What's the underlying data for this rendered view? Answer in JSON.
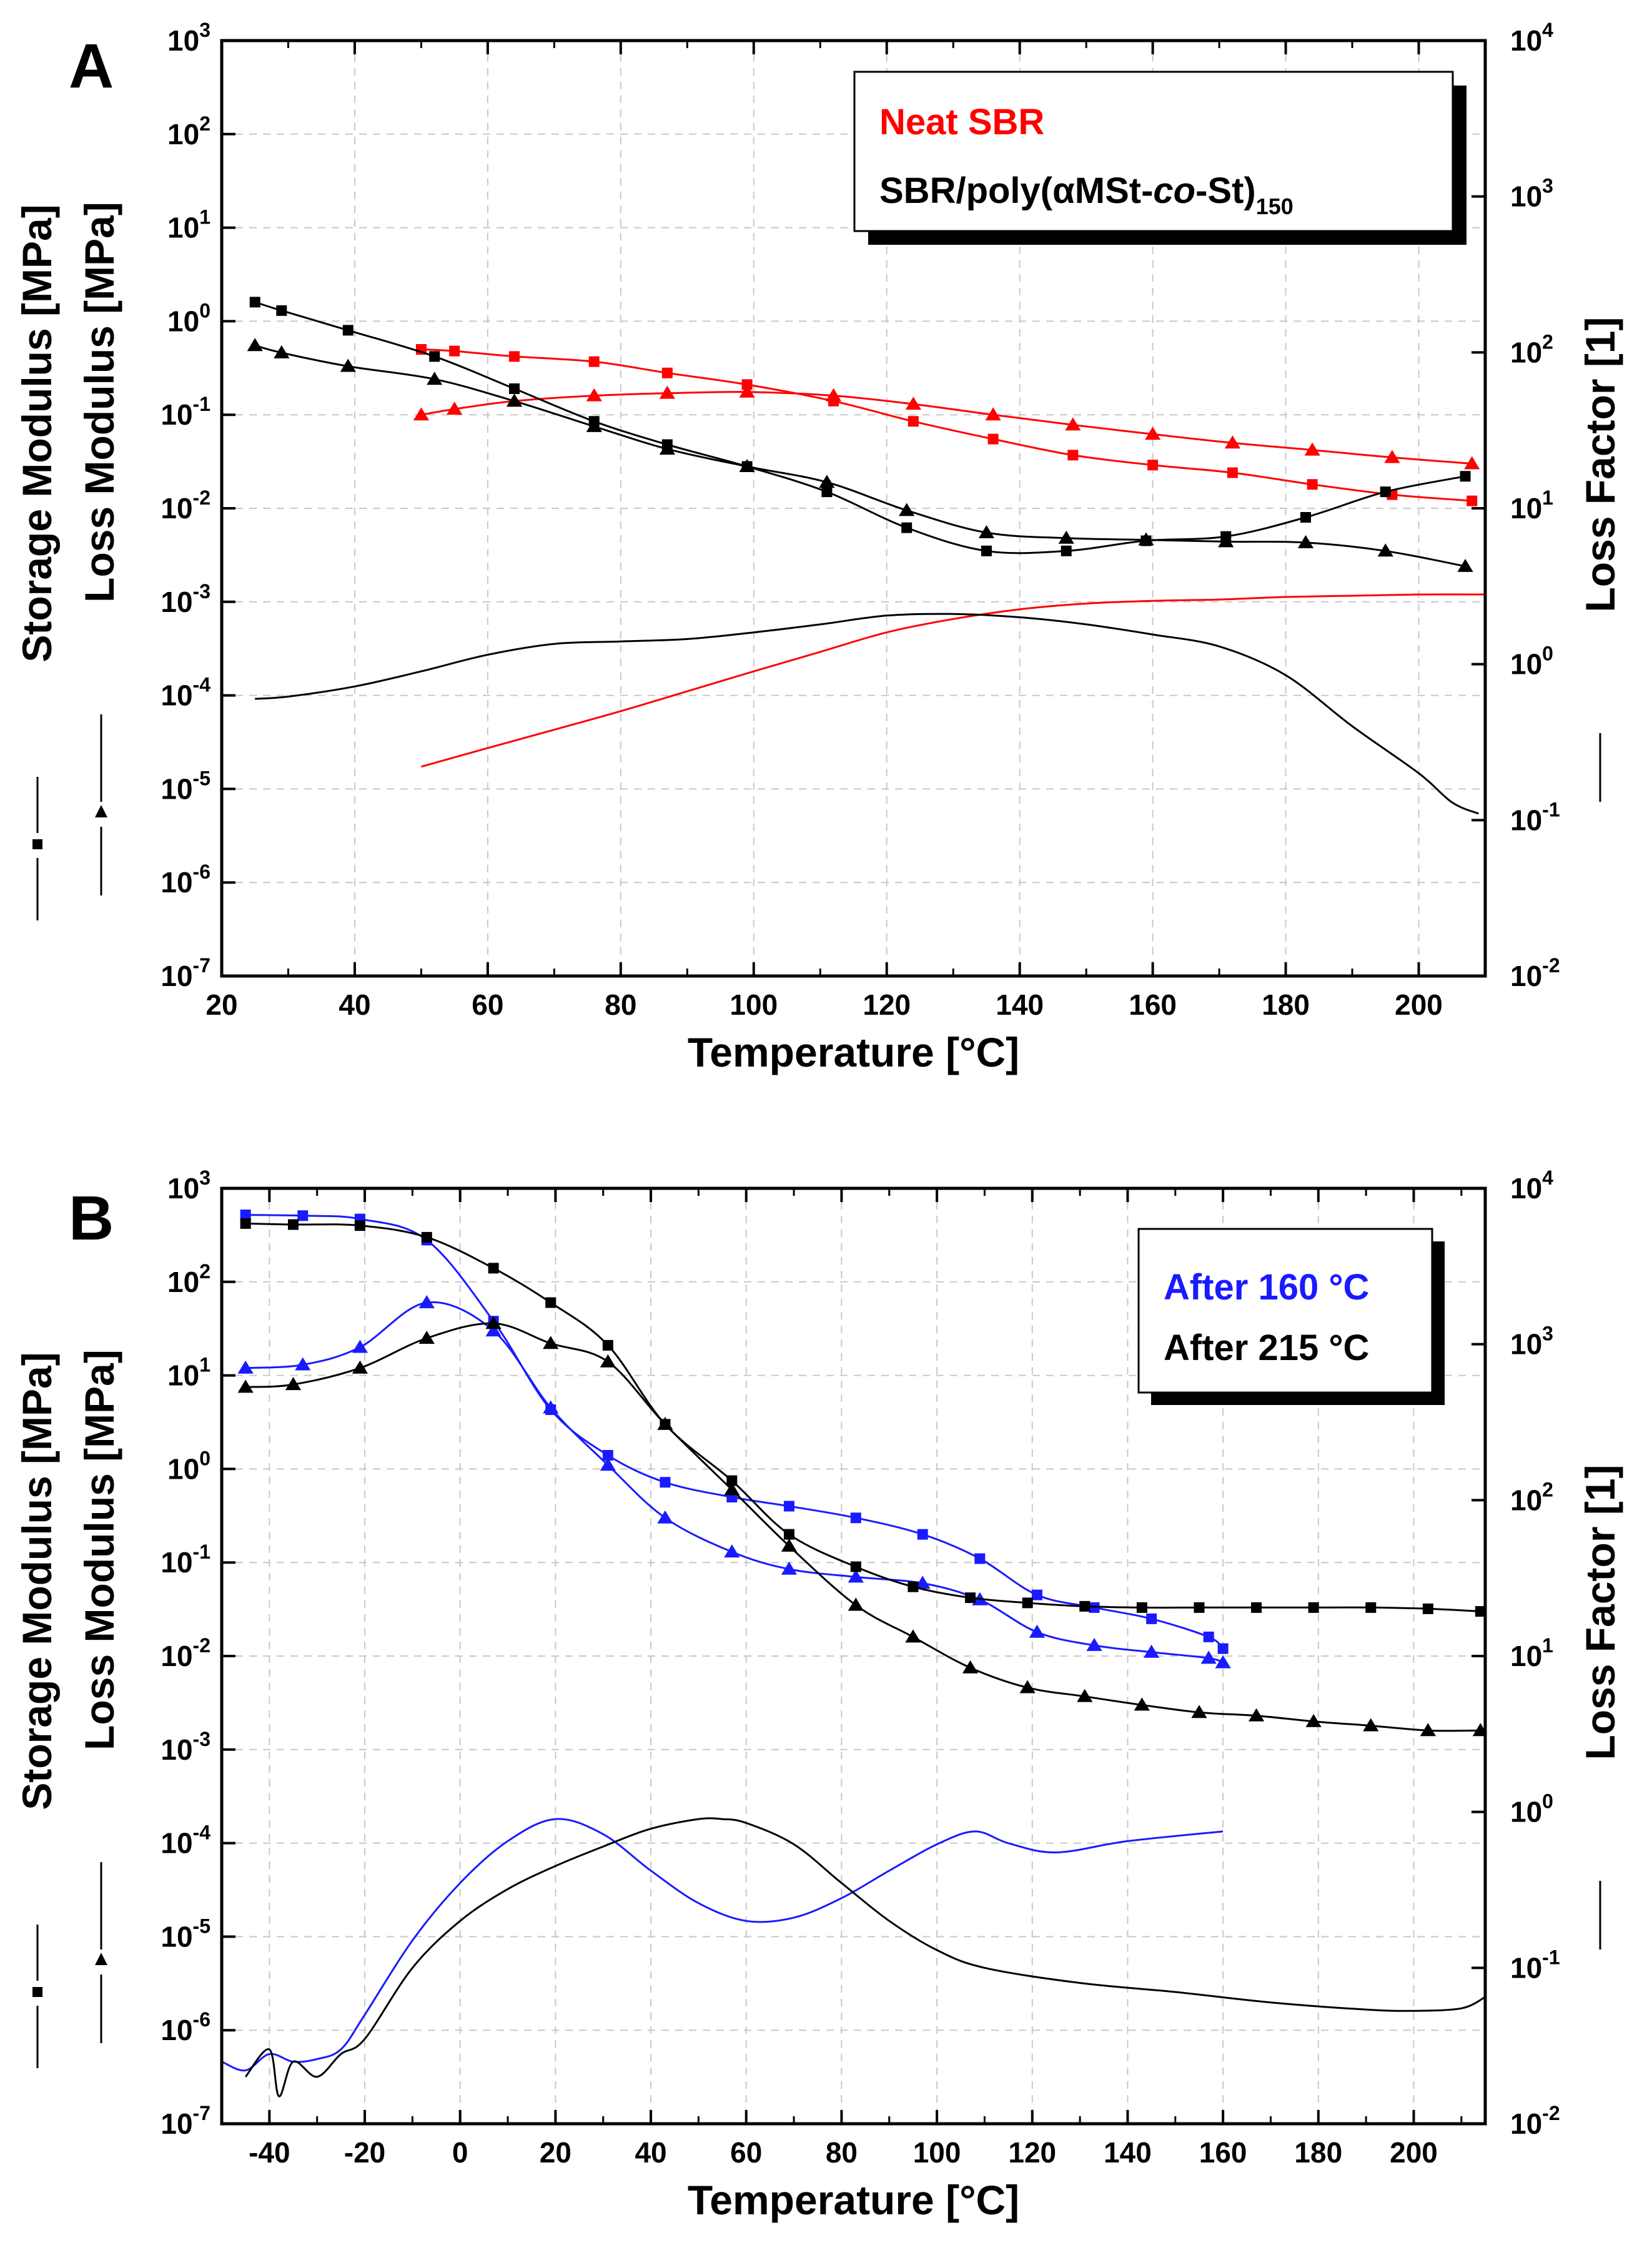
{
  "chart_data": [
    {
      "panel": "A",
      "type": "line",
      "xlabel": "Temperature [°C]",
      "ylabel_left_1": "Storage Modulus [MPa]",
      "ylabel_left_2": "Loss Modulus [MPa]",
      "ylabel_right": "Loss Factor [1]",
      "xlim": [
        20,
        210
      ],
      "xticks": [
        20,
        40,
        60,
        80,
        100,
        120,
        140,
        160,
        180,
        200
      ],
      "ylim_exp": [
        -7,
        3
      ],
      "ylim_right_exp": [
        -2,
        4
      ],
      "left_tick_labels": [
        "10-7",
        "10-6",
        "10-5",
        "10-4",
        "10-3",
        "10-2",
        "10-1",
        "100",
        "101",
        "102",
        "103"
      ],
      "right_tick_labels": [
        "10-2",
        "10-1",
        "100",
        "101",
        "102",
        "103",
        "104"
      ],
      "legend": [
        {
          "text": "Neat SBR",
          "color": "#ff0000"
        },
        {
          "text": "SBR/poly(αMSt-",
          "italic": "co",
          "text2": "-St)",
          "sub": "150",
          "color": "#000000"
        }
      ],
      "series": [
        {
          "name": "Neat SBR storage",
          "color": "#ff0000",
          "marker": "square",
          "axis": "left",
          "x": [
            50,
            55,
            64,
            76,
            87,
            99,
            112,
            124,
            136,
            148,
            160,
            172,
            184,
            196,
            208
          ],
          "y": [
            0.5,
            0.48,
            0.42,
            0.37,
            0.28,
            0.21,
            0.14,
            0.085,
            0.055,
            0.037,
            0.029,
            0.024,
            0.018,
            0.014,
            0.012
          ]
        },
        {
          "name": "Neat SBR loss",
          "color": "#ff0000",
          "marker": "triangle",
          "axis": "left",
          "x": [
            50,
            55,
            64,
            76,
            87,
            99,
            112,
            124,
            136,
            148,
            160,
            172,
            184,
            196,
            208
          ],
          "y": [
            0.1,
            0.115,
            0.14,
            0.16,
            0.17,
            0.175,
            0.16,
            0.13,
            0.1,
            0.078,
            0.062,
            0.05,
            0.042,
            0.035,
            0.03
          ]
        },
        {
          "name": "Neat SBR loss factor",
          "color": "#ff0000",
          "marker": "none",
          "axis": "right",
          "x": [
            50,
            60,
            70,
            80,
            90,
            100,
            110,
            120,
            130,
            140,
            150,
            160,
            170,
            180,
            190,
            200,
            210
          ],
          "y": [
            0.22,
            0.29,
            0.38,
            0.5,
            0.67,
            0.9,
            1.2,
            1.6,
            1.95,
            2.25,
            2.45,
            2.55,
            2.6,
            2.7,
            2.75,
            2.8,
            2.8
          ]
        },
        {
          "name": "SBR/poly(αMSt-co-St)150 storage",
          "color": "#000000",
          "marker": "square",
          "axis": "left",
          "x": [
            25,
            29,
            39,
            52,
            64,
            76,
            87,
            99,
            111,
            123,
            135,
            147,
            159,
            171,
            183,
            195,
            207
          ],
          "y": [
            1.6,
            1.3,
            0.8,
            0.42,
            0.19,
            0.085,
            0.048,
            0.028,
            0.015,
            0.0062,
            0.0035,
            0.0035,
            0.0045,
            0.005,
            0.008,
            0.015,
            0.022
          ]
        },
        {
          "name": "SBR/poly(αMSt-co-St)150 loss",
          "color": "#000000",
          "marker": "triangle",
          "axis": "left",
          "x": [
            25,
            29,
            39,
            52,
            64,
            76,
            87,
            99,
            111,
            123,
            135,
            147,
            159,
            171,
            183,
            195,
            207
          ],
          "y": [
            0.55,
            0.46,
            0.33,
            0.24,
            0.14,
            0.075,
            0.043,
            0.028,
            0.019,
            0.0095,
            0.0055,
            0.0048,
            0.0046,
            0.0044,
            0.0043,
            0.0035,
            0.0024
          ]
        },
        {
          "name": "SBR/poly(αMSt-co-St)150 loss factor",
          "color": "#000000",
          "marker": "none",
          "axis": "right",
          "x": [
            25,
            30,
            40,
            50,
            60,
            70,
            80,
            90,
            100,
            110,
            120,
            130,
            140,
            150,
            160,
            170,
            180,
            190,
            200,
            205,
            209
          ],
          "y": [
            0.6,
            0.62,
            0.72,
            0.9,
            1.15,
            1.35,
            1.4,
            1.45,
            1.6,
            1.8,
            2.05,
            2.1,
            2.0,
            1.8,
            1.55,
            1.3,
            0.85,
            0.4,
            0.2,
            0.13,
            0.11
          ]
        }
      ]
    },
    {
      "panel": "B",
      "type": "line",
      "xlabel": "Temperature [°C]",
      "ylabel_left_1": "Storage Modulus [MPa]",
      "ylabel_left_2": "Loss Modulus [MPa]",
      "ylabel_right": "Loss Factor [1]",
      "xlim": [
        -50,
        215
      ],
      "xticks": [
        -40,
        -20,
        0,
        20,
        40,
        60,
        80,
        100,
        120,
        140,
        160,
        180,
        200
      ],
      "ylim_exp": [
        -7,
        3
      ],
      "ylim_right_exp": [
        -2,
        4
      ],
      "left_tick_labels": [
        "10-7",
        "10-6",
        "10-5",
        "10-4",
        "10-3",
        "10-2",
        "10-1",
        "100",
        "101",
        "102",
        "103"
      ],
      "right_tick_labels": [
        "10-2",
        "10-1",
        "100",
        "101",
        "102",
        "103",
        "104"
      ],
      "legend": [
        {
          "text": "After 160 °C",
          "color": "#1a1aff"
        },
        {
          "text": "After 215 °C",
          "color": "#000000"
        }
      ],
      "series": [
        {
          "name": "After 160 °C storage",
          "color": "#1a1aff",
          "marker": "square",
          "axis": "left",
          "x": [
            -45,
            -33,
            -21,
            -7,
            7,
            19,
            31,
            43,
            57,
            69,
            83,
            97,
            109,
            121,
            133,
            145,
            157,
            160
          ],
          "y": [
            520,
            510,
            470,
            280,
            38,
            4.3,
            1.4,
            0.72,
            0.5,
            0.4,
            0.3,
            0.2,
            0.11,
            0.045,
            0.033,
            0.025,
            0.016,
            0.012
          ]
        },
        {
          "name": "After 160 °C loss",
          "color": "#1a1aff",
          "marker": "triangle",
          "axis": "left",
          "x": [
            -45,
            -33,
            -21,
            -7,
            7,
            19,
            31,
            43,
            57,
            69,
            83,
            97,
            109,
            121,
            133,
            145,
            157,
            160
          ],
          "y": [
            12,
            13,
            20,
            60,
            30,
            4.5,
            1.1,
            0.3,
            0.13,
            0.085,
            0.07,
            0.06,
            0.04,
            0.018,
            0.013,
            0.011,
            0.0095,
            0.0085
          ]
        },
        {
          "name": "After 160 °C loss factor",
          "color": "#1a1aff",
          "marker": "none",
          "axis": "right",
          "x": [
            -50,
            -45,
            -40,
            -35,
            -30,
            -25,
            -20,
            -10,
            0,
            10,
            20,
            30,
            40,
            50,
            60,
            70,
            80,
            90,
            100,
            108,
            115,
            125,
            140,
            160
          ],
          "y": [
            0.025,
            0.022,
            0.028,
            0.025,
            0.026,
            0.03,
            0.05,
            0.15,
            0.35,
            0.65,
            0.9,
            0.72,
            0.42,
            0.26,
            0.2,
            0.21,
            0.28,
            0.42,
            0.62,
            0.75,
            0.63,
            0.55,
            0.65,
            0.75
          ]
        },
        {
          "name": "After 215 °C storage",
          "color": "#000000",
          "marker": "square",
          "axis": "left",
          "x": [
            -45,
            -35,
            -21,
            -7,
            7,
            19,
            31,
            43,
            57,
            69,
            83,
            95,
            107,
            119,
            131,
            143,
            155,
            167,
            179,
            191,
            203,
            214
          ],
          "y": [
            420,
            410,
            400,
            300,
            140,
            60,
            21,
            3,
            0.75,
            0.2,
            0.09,
            0.055,
            0.042,
            0.037,
            0.034,
            0.033,
            0.033,
            0.033,
            0.033,
            0.033,
            0.032,
            0.03
          ]
        },
        {
          "name": "After 215 °C loss",
          "color": "#000000",
          "marker": "triangle",
          "axis": "left",
          "x": [
            -45,
            -35,
            -21,
            -7,
            7,
            19,
            31,
            43,
            57,
            69,
            83,
            95,
            107,
            119,
            131,
            143,
            155,
            167,
            179,
            191,
            203,
            214
          ],
          "y": [
            7.5,
            8,
            12,
            25,
            36,
            22,
            14,
            3,
            0.6,
            0.15,
            0.035,
            0.016,
            0.0075,
            0.0046,
            0.0037,
            0.003,
            0.0025,
            0.0023,
            0.002,
            0.0018,
            0.0016,
            0.0016
          ]
        },
        {
          "name": "After 215 °C loss factor",
          "color": "#000000",
          "marker": "none",
          "axis": "right",
          "x": [
            -45,
            -40,
            -38,
            -35,
            -30,
            -25,
            -20,
            -10,
            0,
            10,
            20,
            30,
            40,
            50,
            55,
            60,
            70,
            80,
            90,
            100,
            110,
            130,
            150,
            170,
            190,
            200,
            210,
            215
          ],
          "y": [
            0.02,
            0.03,
            0.015,
            0.025,
            0.02,
            0.028,
            0.035,
            0.1,
            0.2,
            0.32,
            0.45,
            0.6,
            0.78,
            0.9,
            0.9,
            0.85,
            0.62,
            0.35,
            0.2,
            0.13,
            0.1,
            0.08,
            0.07,
            0.06,
            0.054,
            0.053,
            0.055,
            0.065
          ]
        }
      ]
    }
  ]
}
